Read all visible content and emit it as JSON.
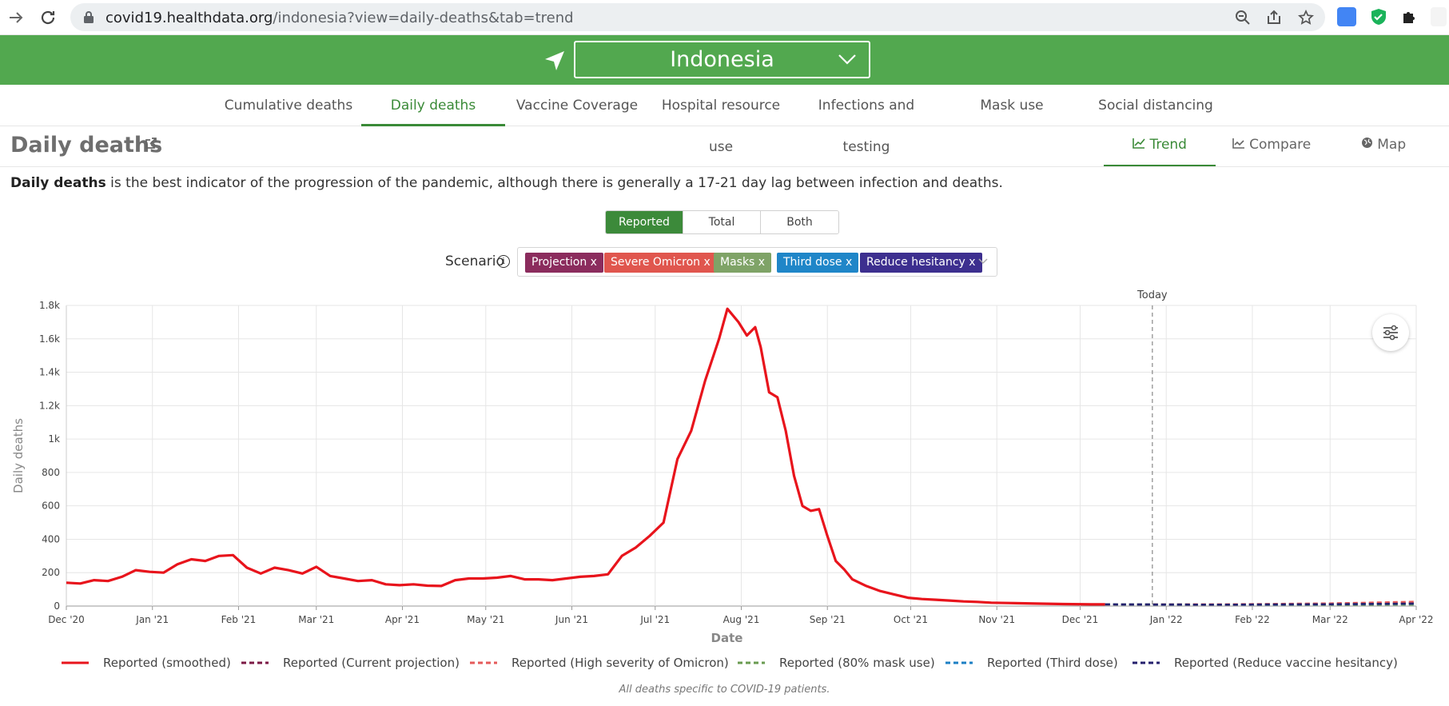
{
  "browser": {
    "url_host": "covid19.healthdata.org",
    "url_path": "/indonesia?view=daily-deaths&tab=trend"
  },
  "header": {
    "country": "Indonesia"
  },
  "main_tabs": [
    {
      "label": "Cumulative deaths",
      "active": false
    },
    {
      "label": "Daily deaths",
      "active": true
    },
    {
      "label": "Vaccine Coverage",
      "active": false
    },
    {
      "label": "Hospital resource use",
      "active": false
    },
    {
      "label": "Infections and testing",
      "active": false
    },
    {
      "label": "Mask use",
      "active": false
    },
    {
      "label": "Social distancing",
      "active": false
    }
  ],
  "section": {
    "title": "Daily deaths",
    "description_bold": "Daily deaths",
    "description_rest": " is the best indicator of the progression of the pandemic, although there is generally a 17-21 day lag between infection and deaths."
  },
  "view_tabs": [
    {
      "label": "Trend",
      "icon": "line-chart-icon",
      "active": true
    },
    {
      "label": "Compare",
      "icon": "compare-chart-icon",
      "active": false
    },
    {
      "label": "Map",
      "icon": "globe-icon",
      "active": false
    }
  ],
  "segments": [
    {
      "label": "Reported",
      "active": true
    },
    {
      "label": "Total",
      "active": false
    },
    {
      "label": "Both",
      "active": false
    }
  ],
  "scenario": {
    "label": "Scenario",
    "chips": [
      {
        "label": "Projection x",
        "color": "#8b2c5d"
      },
      {
        "label": "Severe Omicron x",
        "color": "#e0564e"
      },
      {
        "label": "Masks x",
        "color": "#7fa367"
      },
      {
        "label": "Third dose x",
        "color": "#1f86c8"
      },
      {
        "label": "Reduce hesitancy x",
        "color": "#3d2f8f"
      }
    ]
  },
  "chart_data": {
    "type": "line",
    "xlabel": "Date",
    "ylabel": "Daily deaths",
    "ylim": [
      0,
      1800
    ],
    "y_ticks": [
      "0",
      "200",
      "400",
      "600",
      "800",
      "1k",
      "1.2k",
      "1.4k",
      "1.6k",
      "1.8k"
    ],
    "x_ticks": [
      "Dec '20",
      "Jan '21",
      "Feb '21",
      "Mar '21",
      "Apr '21",
      "May '21",
      "Jun '21",
      "Jul '21",
      "Aug '21",
      "Sep '21",
      "Oct '21",
      "Nov '21",
      "Dec '21",
      "Jan '22",
      "Feb '22",
      "Mar '22",
      "Apr '22"
    ],
    "today_label": "Today",
    "today_date": "2021-12-27",
    "grid": true,
    "legend_placement": "bottom",
    "series": [
      {
        "name": "Reported (smoothed)",
        "color": "#e8141c",
        "dash": false,
        "x": [
          "2020-12-01",
          "2020-12-06",
          "2020-12-11",
          "2020-12-16",
          "2020-12-21",
          "2020-12-26",
          "2020-12-31",
          "2021-01-05",
          "2021-01-10",
          "2021-01-15",
          "2021-01-20",
          "2021-01-25",
          "2021-01-30",
          "2021-02-04",
          "2021-02-09",
          "2021-02-14",
          "2021-02-19",
          "2021-02-24",
          "2021-03-01",
          "2021-03-06",
          "2021-03-11",
          "2021-03-16",
          "2021-03-21",
          "2021-03-26",
          "2021-03-31",
          "2021-04-05",
          "2021-04-10",
          "2021-04-15",
          "2021-04-20",
          "2021-04-25",
          "2021-04-30",
          "2021-05-05",
          "2021-05-10",
          "2021-05-15",
          "2021-05-20",
          "2021-05-25",
          "2021-05-30",
          "2021-06-04",
          "2021-06-09",
          "2021-06-14",
          "2021-06-19",
          "2021-06-24",
          "2021-06-29",
          "2021-07-04",
          "2021-07-09",
          "2021-07-14",
          "2021-07-19",
          "2021-07-24",
          "2021-07-27",
          "2021-07-31",
          "2021-08-03",
          "2021-08-06",
          "2021-08-08",
          "2021-08-11",
          "2021-08-14",
          "2021-08-17",
          "2021-08-20",
          "2021-08-23",
          "2021-08-26",
          "2021-08-29",
          "2021-09-01",
          "2021-09-04",
          "2021-09-07",
          "2021-09-10",
          "2021-09-15",
          "2021-09-20",
          "2021-09-25",
          "2021-09-30",
          "2021-10-05",
          "2021-10-10",
          "2021-10-15",
          "2021-10-20",
          "2021-10-25",
          "2021-10-30",
          "2021-11-05",
          "2021-11-15",
          "2021-11-25",
          "2021-12-05",
          "2021-12-10"
        ],
        "y": [
          140,
          135,
          155,
          150,
          175,
          215,
          205,
          200,
          250,
          280,
          270,
          300,
          305,
          230,
          195,
          230,
          215,
          195,
          235,
          180,
          165,
          150,
          155,
          130,
          125,
          130,
          122,
          120,
          155,
          165,
          165,
          170,
          180,
          160,
          160,
          155,
          165,
          175,
          180,
          190,
          300,
          350,
          420,
          500,
          880,
          1050,
          1350,
          1600,
          1780,
          1700,
          1620,
          1670,
          1550,
          1280,
          1250,
          1050,
          780,
          600,
          570,
          580,
          420,
          270,
          220,
          160,
          120,
          90,
          70,
          50,
          42,
          38,
          33,
          28,
          25,
          20,
          18,
          15,
          12,
          10,
          10
        ]
      },
      {
        "name": "Reported (Current projection)",
        "color": "#7c1a45",
        "dash": true,
        "x": [
          "2021-12-10",
          "2022-01-20",
          "2022-03-01",
          "2022-04-01"
        ],
        "y": [
          10,
          9,
          12,
          18
        ]
      },
      {
        "name": "Reported (High severity of Omicron)",
        "color": "#e55a5a",
        "dash": true,
        "x": [
          "2021-12-10",
          "2022-01-20",
          "2022-03-01",
          "2022-04-01"
        ],
        "y": [
          10,
          10,
          16,
          26
        ]
      },
      {
        "name": "Reported (80% mask use)",
        "color": "#6a9b50",
        "dash": true,
        "x": [
          "2021-12-10",
          "2022-01-20",
          "2022-03-01",
          "2022-04-01"
        ],
        "y": [
          10,
          8,
          8,
          9
        ]
      },
      {
        "name": "Reported (Third dose)",
        "color": "#1c7fc4",
        "dash": true,
        "x": [
          "2021-12-10",
          "2022-01-20",
          "2022-03-01",
          "2022-04-01"
        ],
        "y": [
          10,
          8,
          10,
          14
        ]
      },
      {
        "name": "Reported (Reduce vaccine hesitancy)",
        "color": "#25206d",
        "dash": true,
        "x": [
          "2021-12-10",
          "2022-01-20",
          "2022-03-01",
          "2022-04-01"
        ],
        "y": [
          10,
          8,
          11,
          15
        ]
      }
    ]
  },
  "chart_note": "All deaths specific to COVID-19 patients."
}
